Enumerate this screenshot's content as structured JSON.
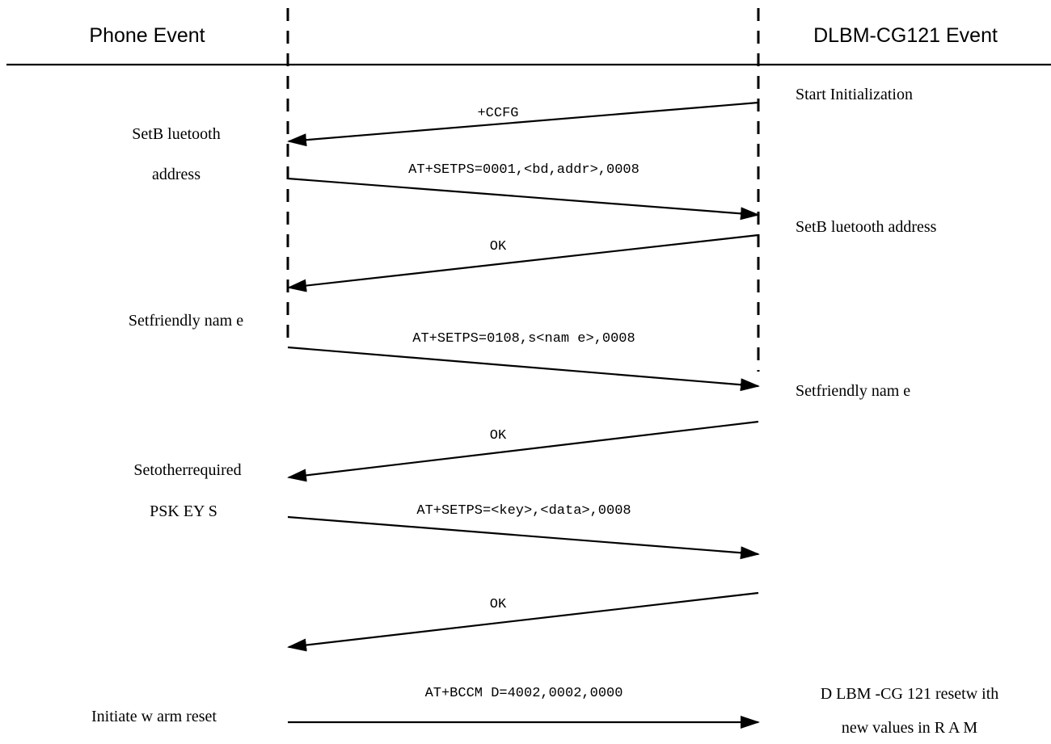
{
  "header": {
    "left_title": "Phone Event",
    "right_title": "DLBM-CG121 Event"
  },
  "phone_events": [
    "SetB luetooth",
    "address",
    "Setfriendly nam e",
    "Setotherrequired",
    "PSK EY S",
    "Initiate w arm reset"
  ],
  "module_events": [
    "Start Initialization",
    "SetB luetooth address",
    "Setfriendly nam e",
    "D LBM -CG 121 resetw ith",
    "new values in R A M"
  ],
  "messages": [
    {
      "label": "+CCFG",
      "direction": "module-to-phone"
    },
    {
      "label": "AT+SETPS=0001,<bd,addr>,0008",
      "direction": "phone-to-module"
    },
    {
      "label": "OK",
      "direction": "module-to-phone"
    },
    {
      "label": "AT+SETPS=0108,s<nam e>,0008",
      "direction": "phone-to-module"
    },
    {
      "label": "OK",
      "direction": "module-to-phone"
    },
    {
      "label": "AT+SETPS=<key>,<data>,0008",
      "direction": "phone-to-module"
    },
    {
      "label": "OK",
      "direction": "module-to-phone"
    },
    {
      "label": "AT+BCCM D=4002,0002,0000",
      "direction": "phone-to-module"
    }
  ]
}
